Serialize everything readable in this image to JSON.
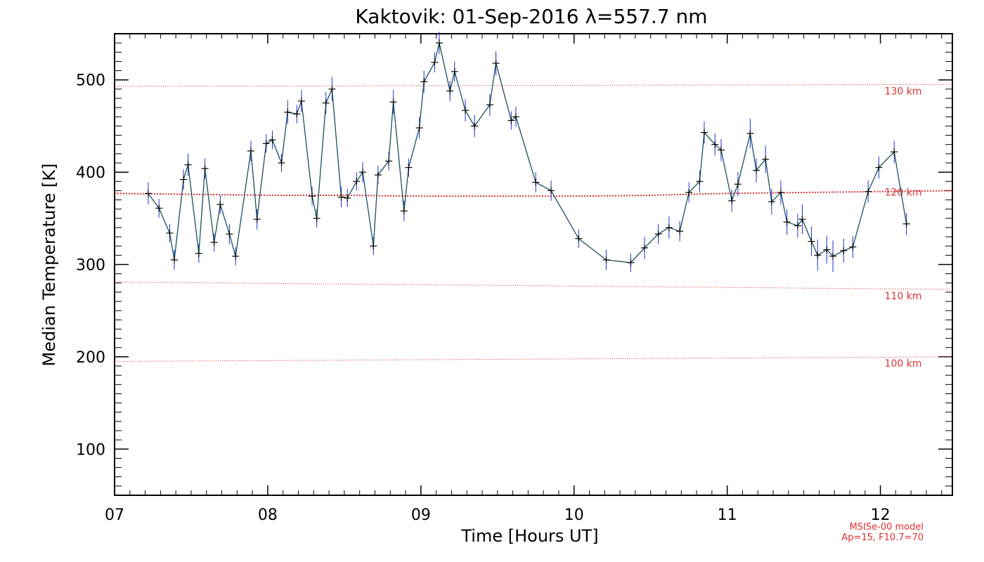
{
  "chart_data": {
    "type": "scatter",
    "title": "Kaktovik: 01-Sep-2016 λ=557.7 nm",
    "xlabel": "Time [Hours UT]",
    "ylabel": "Median Temperature [K]",
    "xlim": [
      7.0,
      12.47
    ],
    "ylim": [
      50,
      550
    ],
    "x_ticks": [
      7,
      8,
      9,
      10,
      11,
      12
    ],
    "x_tick_labels": [
      "07",
      "08",
      "09",
      "10",
      "11",
      "12"
    ],
    "y_ticks": [
      100,
      200,
      300,
      400,
      500
    ],
    "y_tick_labels": [
      "100",
      "200",
      "300",
      "400",
      "500"
    ],
    "grid": false,
    "series": [
      {
        "color": "#1a4f5a",
        "error_color": "#2030d0",
        "marker": "plus",
        "x": [
          7.22,
          7.29,
          7.36,
          7.39,
          7.45,
          7.48,
          7.55,
          7.59,
          7.65,
          7.69,
          7.75,
          7.79,
          7.89,
          7.93,
          7.99,
          8.03,
          8.09,
          8.13,
          8.19,
          8.22,
          8.29,
          8.32,
          8.38,
          8.42,
          8.48,
          8.52,
          8.58,
          8.62,
          8.69,
          8.72,
          8.79,
          8.82,
          8.89,
          8.92,
          8.99,
          9.02,
          9.09,
          9.12,
          9.19,
          9.22,
          9.29,
          9.35,
          9.45,
          9.49,
          9.59,
          9.62,
          9.75,
          9.85,
          10.03,
          10.21,
          10.37,
          10.46,
          10.55,
          10.62,
          10.69,
          10.75,
          10.82,
          10.85,
          10.92,
          10.96,
          11.03,
          11.07,
          11.15,
          11.19,
          11.25,
          11.29,
          11.35,
          11.39,
          11.46,
          11.49,
          11.55,
          11.59,
          11.65,
          11.69,
          11.76,
          11.82,
          11.92,
          11.99,
          12.09,
          12.17
        ],
        "y": [
          377,
          361,
          334,
          305,
          392,
          408,
          312,
          404,
          324,
          365,
          333,
          309,
          423,
          349,
          431,
          435,
          410,
          465,
          463,
          477,
          374,
          350,
          475,
          490,
          373,
          372,
          390,
          400,
          320,
          397,
          412,
          476,
          358,
          405,
          448,
          498,
          519,
          540,
          488,
          509,
          467,
          450,
          473,
          518,
          456,
          460,
          389,
          380,
          328,
          305,
          302,
          318,
          333,
          340,
          336,
          378,
          390,
          443,
          430,
          424,
          369,
          387,
          442,
          402,
          414,
          368,
          378,
          346,
          342,
          349,
          325,
          310,
          316,
          309,
          315,
          319,
          379,
          405,
          422,
          344
        ],
        "errors": [
          12,
          10,
          10,
          11,
          11,
          12,
          10,
          11,
          10,
          10,
          11,
          10,
          11,
          11,
          10,
          10,
          10,
          13,
          10,
          12,
          10,
          10,
          12,
          13,
          11,
          10,
          10,
          11,
          10,
          10,
          10,
          13,
          11,
          10,
          12,
          12,
          11,
          12,
          11,
          11,
          12,
          12,
          12,
          13,
          10,
          11,
          11,
          11,
          10,
          11,
          10,
          12,
          11,
          12,
          11,
          11,
          12,
          12,
          12,
          12,
          12,
          13,
          16,
          13,
          15,
          14,
          13,
          14,
          13,
          16,
          16,
          17,
          15,
          17,
          13,
          12,
          12,
          12,
          12,
          12
        ]
      }
    ],
    "reference_lines": [
      {
        "label": "130 km",
        "color": "#e03030",
        "x": [
          7.0,
          12.47
        ],
        "y": [
          493,
          495
        ]
      },
      {
        "label": "120 km",
        "color": "#e03030",
        "x": [
          7.0,
          7.5,
          8.0,
          8.5,
          9.0,
          9.5,
          10.0,
          10.5,
          11.0,
          11.5,
          12.0,
          12.47
        ],
        "y": [
          377,
          376,
          375,
          375,
          374,
          374,
          374,
          375,
          377,
          378,
          379,
          380
        ]
      },
      {
        "label": "110 km",
        "color": "#e03030",
        "x": [
          7.0,
          12.47
        ],
        "y": [
          281,
          273
        ]
      },
      {
        "label": "100 km",
        "color": "#e03030",
        "x": [
          7.0,
          12.47
        ],
        "y": [
          195,
          200
        ]
      }
    ],
    "annotations": [
      "MSISe-00 model",
      "Ap=15, F10.7=70"
    ]
  }
}
